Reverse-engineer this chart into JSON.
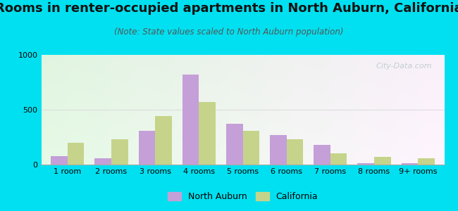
{
  "title": "Rooms in renter-occupied apartments in North Auburn, California",
  "subtitle": "(Note: State values scaled to North Auburn population)",
  "categories": [
    "1 room",
    "2 rooms",
    "3 rooms",
    "4 rooms",
    "5 rooms",
    "6 rooms",
    "7 rooms",
    "8 rooms",
    "9+ rooms"
  ],
  "north_auburn": [
    80,
    55,
    305,
    820,
    370,
    270,
    180,
    15,
    15
  ],
  "california": [
    200,
    230,
    440,
    570,
    310,
    230,
    105,
    70,
    60
  ],
  "color_auburn": "#c49fd8",
  "color_california": "#c5d48a",
  "ylim": [
    0,
    1000
  ],
  "yticks": [
    0,
    500,
    1000
  ],
  "bar_width": 0.38,
  "outer_bg": "#00e0f0",
  "legend_auburn": "North Auburn",
  "legend_california": "California",
  "title_fontsize": 13,
  "subtitle_fontsize": 8.5,
  "tick_fontsize": 8,
  "legend_fontsize": 9,
  "watermark_text": "City-Data.com",
  "watermark_color": "#b8c8c8"
}
